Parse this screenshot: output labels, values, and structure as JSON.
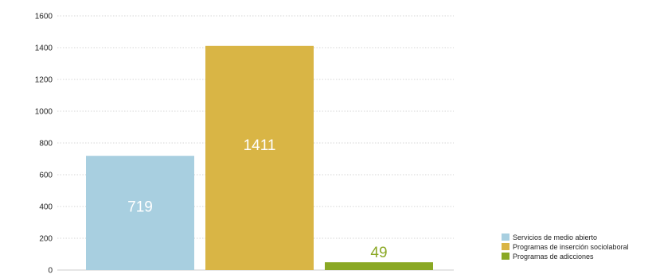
{
  "chart_data": {
    "type": "bar",
    "categories": [
      "Servicios de medio abierto",
      "Programas de inserción sociolaboral",
      "Programas de adicciones"
    ],
    "values": [
      719,
      1411,
      49
    ],
    "data_labels": [
      "719",
      "1411",
      "49"
    ],
    "colors": [
      "#a8cfe0",
      "#d9b545",
      "#8aa824"
    ],
    "label_colors": [
      "#ffffff",
      "#ffffff",
      "#8aa824"
    ],
    "label_position": [
      "inside",
      "inside",
      "above"
    ],
    "ylim": [
      0,
      1600
    ],
    "yticks": [
      0,
      200,
      400,
      600,
      800,
      1000,
      1200,
      1400,
      1600
    ],
    "ytick_labels": [
      "0",
      "200",
      "400",
      "600",
      "800",
      "1000",
      "1200",
      "1400",
      "1600"
    ],
    "grid": true,
    "grid_style": "dotted",
    "legend": {
      "placement": "bottom-right",
      "entries": [
        "Servicios de medio abierto",
        "Programas de inserción sociolaboral",
        "Programas de adicciones"
      ]
    },
    "title": "",
    "xlabel": "",
    "ylabel": ""
  }
}
